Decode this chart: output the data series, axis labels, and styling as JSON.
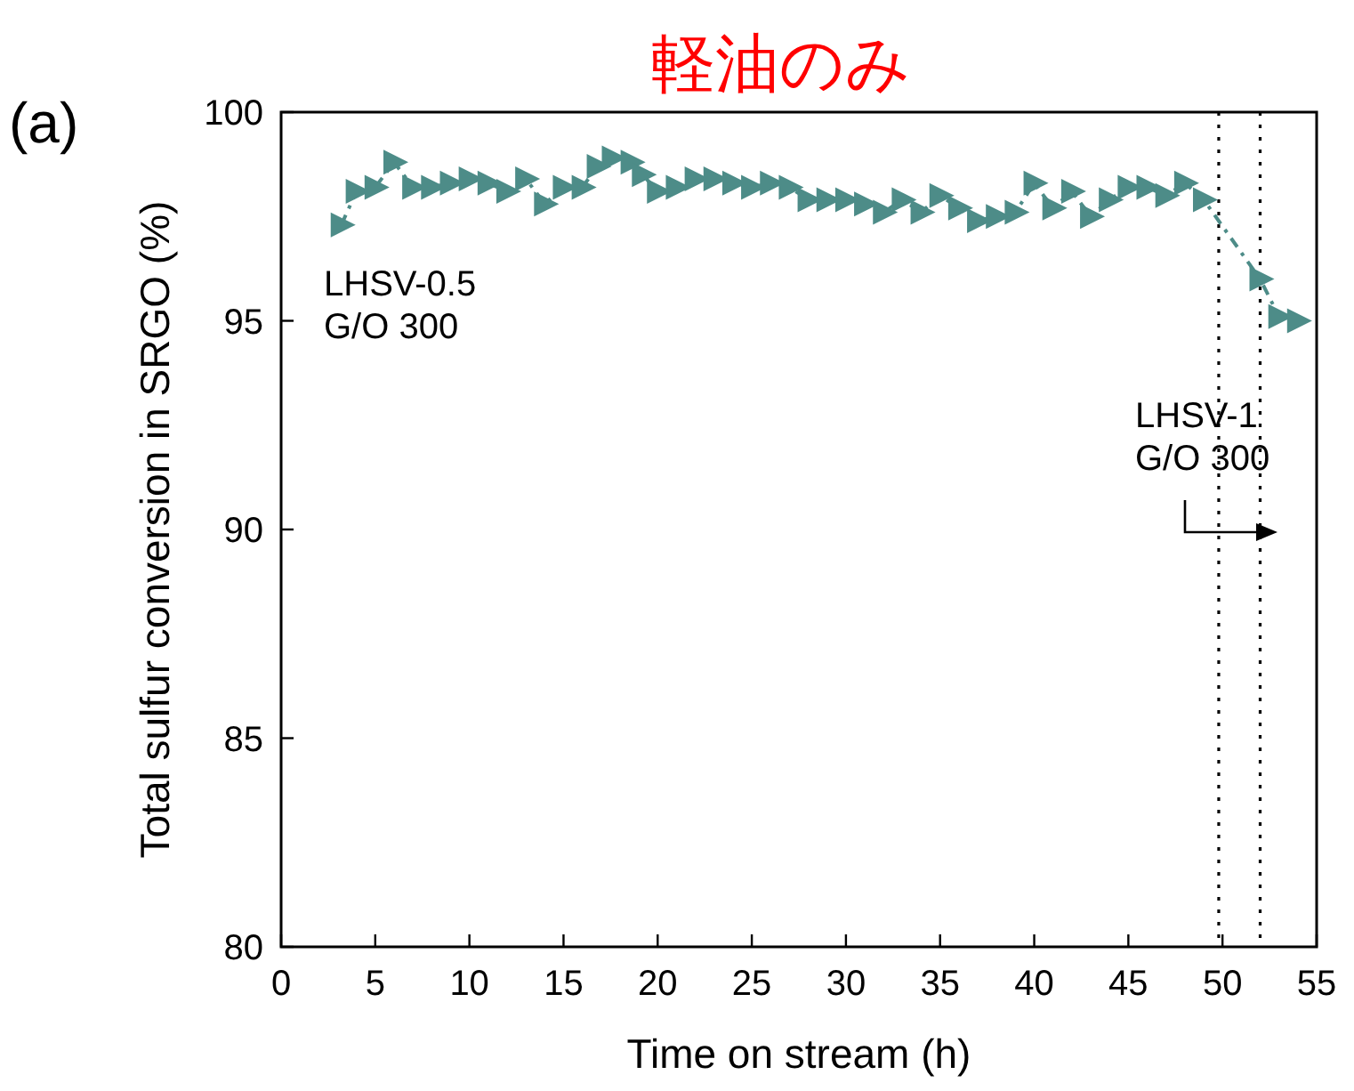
{
  "chart_data": {
    "type": "line",
    "title": "軽油のみ",
    "xlabel": "Time on stream (h)",
    "ylabel": "Total sulfur conversion in SRGO (%)",
    "xlim": [
      0,
      55
    ],
    "xticks": [
      0,
      5,
      10,
      15,
      20,
      25,
      30,
      35,
      40,
      45,
      50,
      55
    ],
    "ylim": [
      80,
      100
    ],
    "yticks": [
      80,
      85,
      90,
      95,
      100
    ],
    "grid": false,
    "marker": "triangle",
    "line_style": "dashed",
    "series": [
      {
        "color": "#4d8c88",
        "x": [
          3.2,
          4,
          5,
          6,
          7,
          8,
          9,
          10,
          11,
          12,
          13,
          14,
          15,
          16,
          16.8,
          17.6,
          18.6,
          19.2,
          20,
          21,
          22,
          23,
          24,
          25,
          26,
          27,
          28,
          29,
          30,
          31,
          32,
          33,
          34,
          35,
          36,
          37,
          38,
          39,
          40,
          41,
          42,
          43,
          44,
          45,
          46,
          47,
          48,
          49,
          52,
          53,
          54
        ],
        "values": [
          97.3,
          98.1,
          98.2,
          98.8,
          98.2,
          98.2,
          98.3,
          98.4,
          98.3,
          98.1,
          98.4,
          97.8,
          98.2,
          98.2,
          98.7,
          98.9,
          98.8,
          98.5,
          98.1,
          98.2,
          98.4,
          98.4,
          98.3,
          98.2,
          98.3,
          98.2,
          97.9,
          97.9,
          97.9,
          97.8,
          97.6,
          97.9,
          97.6,
          98.0,
          97.7,
          97.4,
          97.5,
          97.6,
          98.3,
          97.7,
          98.1,
          97.5,
          97.9,
          98.2,
          98.2,
          98.0,
          98.3,
          97.9,
          96.0,
          95.1,
          95.0
        ]
      }
    ],
    "ref_lines": [
      {
        "axis": "x",
        "value": 49.8,
        "line_style": "dotted",
        "color": "#000000"
      },
      {
        "axis": "x",
        "value": 52,
        "line_style": "dotted",
        "color": "#000000"
      }
    ],
    "annotations": [
      "(a)",
      "LHSV-0.5\nG/O 300",
      "LHSV-1\nG/O 300"
    ]
  }
}
